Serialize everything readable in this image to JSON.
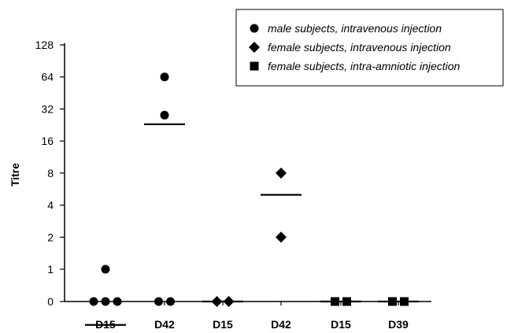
{
  "chart_data": {
    "type": "scatter",
    "ylabel": "Titre",
    "xlabel": "",
    "y_scale": "log2 with zero",
    "y_ticks": [
      "0",
      "1",
      "2",
      "4",
      "8",
      "16",
      "32",
      "64",
      "128"
    ],
    "categories": [
      "D15",
      "D42",
      "D15",
      "D42",
      "D15",
      "D39"
    ],
    "legend_position": "top-right",
    "grid": false,
    "series": [
      {
        "name": "male subjects, intravenous injection",
        "marker": "circle",
        "groups": [
          {
            "category_index": 0,
            "points": [
              1,
              0,
              0,
              0
            ],
            "mean": 0.3
          },
          {
            "category_index": 1,
            "points": [
              64,
              28,
              0,
              0
            ],
            "mean": 23
          }
        ]
      },
      {
        "name": "female subjects, intravenous injection",
        "marker": "diamond",
        "groups": [
          {
            "category_index": 2,
            "points": [
              0,
              0
            ],
            "mean": 0
          },
          {
            "category_index": 3,
            "points": [
              8,
              2
            ],
            "mean": 5
          }
        ]
      },
      {
        "name": "female subjects, intra-amniotic injection",
        "marker": "square",
        "groups": [
          {
            "category_index": 4,
            "points": [
              0,
              0
            ],
            "mean": 0
          },
          {
            "category_index": 5,
            "points": [
              0,
              0
            ],
            "mean": 0
          }
        ]
      }
    ]
  }
}
